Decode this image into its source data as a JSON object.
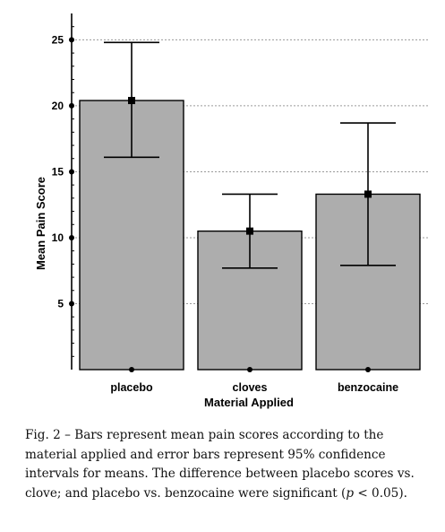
{
  "chart_data": {
    "type": "bar",
    "categories": [
      "placebo",
      "cloves",
      "benzocaine"
    ],
    "values": [
      20.4,
      10.5,
      13.3
    ],
    "ci_lower": [
      16.1,
      7.7,
      7.9
    ],
    "ci_upper": [
      24.8,
      13.3,
      18.7
    ],
    "xlabel": "Material Applied",
    "ylabel": "Mean Pain Score",
    "ylim": [
      0,
      27
    ],
    "yticks": [
      "5",
      "10",
      "15",
      "20",
      "25"
    ],
    "grid": "horizontal dotted",
    "bar_color": "#adadad",
    "error_bars": "95% confidence interval"
  },
  "caption": {
    "part1": "Fig. 2 – Bars represent mean pain scores according to the material applied and error bars represent 95% confidence intervals for means. The difference between placebo scores vs. clove; and placebo vs. benzocaine were significant (",
    "p": "p",
    "part2": " < 0.05)."
  }
}
